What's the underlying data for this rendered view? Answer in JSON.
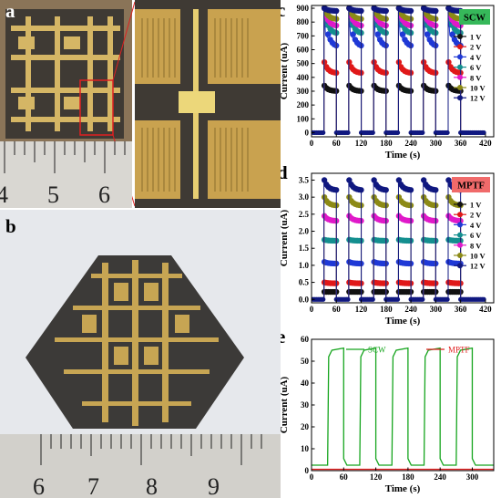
{
  "figure": {
    "panels": [
      {
        "label": "a",
        "ruler_numbers": [
          "4",
          "5",
          "6"
        ]
      },
      {
        "label": "b",
        "ruler_numbers": [
          "6",
          "7",
          "8",
          "9"
        ]
      },
      {
        "label": "c"
      },
      {
        "label": "d"
      },
      {
        "label": "e"
      }
    ]
  },
  "colors": {
    "1 V": "#111111",
    "2 V": "#e01818",
    "4 V": "#1f39d6",
    "6 V": "#148f8f",
    "8 V": "#e019c9",
    "10 V": "#8c8a16",
    "12 V": "#101880",
    "scw_line": "#16a51e",
    "mptf_line": "#e02020",
    "scw_badge": "#36b85a",
    "mptf_badge": "#f06a6a"
  },
  "chart_data": [
    {
      "id": "c",
      "type": "line",
      "badge": "SCW",
      "xlabel": "Time (s)",
      "ylabel": "Current (uA)",
      "xlim": [
        0,
        440
      ],
      "ylim": [
        -30,
        920
      ],
      "xticks": [
        0,
        60,
        120,
        180,
        240,
        300,
        360,
        420
      ],
      "yticks": [
        0,
        100,
        200,
        300,
        400,
        500,
        600,
        700,
        800,
        900
      ],
      "pulses": {
        "period": 60,
        "on_start": 30,
        "on_duration": 30,
        "count": 6
      },
      "series": [
        {
          "name": "1 V",
          "peak": 340,
          "plateau": 300
        },
        {
          "name": "2 V",
          "peak": 510,
          "plateau": 430
        },
        {
          "name": "4 V",
          "peak": 900,
          "plateau": 620
        },
        {
          "name": "6 V",
          "peak": 900,
          "plateau": 715
        },
        {
          "name": "8 V",
          "peak": 900,
          "plateau": 770
        },
        {
          "name": "10 V",
          "peak": 900,
          "plateau": 820
        },
        {
          "name": "12 V",
          "peak": 900,
          "plateau": 880
        }
      ]
    },
    {
      "id": "d",
      "type": "line",
      "badge": "MPTF",
      "xlabel": "Time (s)",
      "ylabel": "Current (uA)",
      "xlim": [
        0,
        440
      ],
      "ylim": [
        -0.1,
        3.7
      ],
      "xticks": [
        0,
        60,
        120,
        180,
        240,
        300,
        360,
        420
      ],
      "yticks": [
        "0.0",
        "0.5",
        "1.0",
        "1.5",
        "2.0",
        "2.5",
        "3.0",
        "3.5"
      ],
      "pulses": {
        "period": 60,
        "on_start": 30,
        "on_duration": 30,
        "count": 6
      },
      "series": [
        {
          "name": "1 V",
          "peak": 0.22,
          "plateau": 0.22
        },
        {
          "name": "2 V",
          "peak": 0.5,
          "plateau": 0.47
        },
        {
          "name": "4 V",
          "peak": 1.1,
          "plateau": 1.05
        },
        {
          "name": "6 V",
          "peak": 1.75,
          "plateau": 1.72
        },
        {
          "name": "8 V",
          "peak": 2.45,
          "plateau": 2.3
        },
        {
          "name": "10 V",
          "peak": 3.0,
          "plateau": 2.75
        },
        {
          "name": "12 V",
          "peak": 3.5,
          "plateau": 3.2
        }
      ]
    },
    {
      "id": "e",
      "type": "line",
      "xlabel": "Time (s)",
      "ylabel": "Current (uA)",
      "xlim": [
        0,
        340
      ],
      "ylim": [
        0,
        60
      ],
      "xticks": [
        0,
        60,
        120,
        180,
        240,
        300
      ],
      "yticks": [
        0,
        10,
        20,
        30,
        40,
        50,
        60
      ],
      "series": [
        {
          "name": "SCW",
          "low": 2.5,
          "high": 56,
          "pulses": [
            [
              30,
              60
            ],
            [
              90,
              120
            ],
            [
              150,
              180
            ],
            [
              210,
              240
            ],
            [
              270,
              300
            ]
          ]
        },
        {
          "name": "MPTF",
          "low": 0.6,
          "high": 0.6
        }
      ]
    }
  ]
}
